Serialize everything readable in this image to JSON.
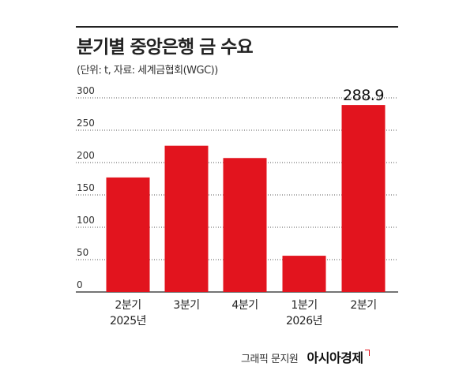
{
  "title": "분기별 중앙은행 금 수요",
  "subtitle": "(단위: t, 자료: 세계금협회(WGC))",
  "footer": {
    "credit": "그래픽 문지원",
    "logo": "아시아경제"
  },
  "colors": {
    "bar": "#e2141e",
    "grid": "#555555",
    "text": "#222222"
  },
  "chart_data": {
    "type": "bar",
    "title": "분기별 중앙은행 금 수요",
    "categories": [
      [
        "2분기",
        "2025년"
      ],
      [
        "3분기"
      ],
      [
        "4분기"
      ],
      [
        "1분기",
        "2026년"
      ],
      [
        "2분기"
      ]
    ],
    "values": [
      177,
      226,
      207,
      56,
      288.9
    ],
    "data_labels": [
      "",
      "",
      "",
      "",
      "288.9"
    ],
    "yticks": [
      "0",
      "50",
      "100",
      "150",
      "200",
      "250",
      "300"
    ],
    "ylim": [
      0,
      300
    ],
    "grid": true,
    "grid_style": "dotted",
    "xlabel": "",
    "ylabel": ""
  }
}
